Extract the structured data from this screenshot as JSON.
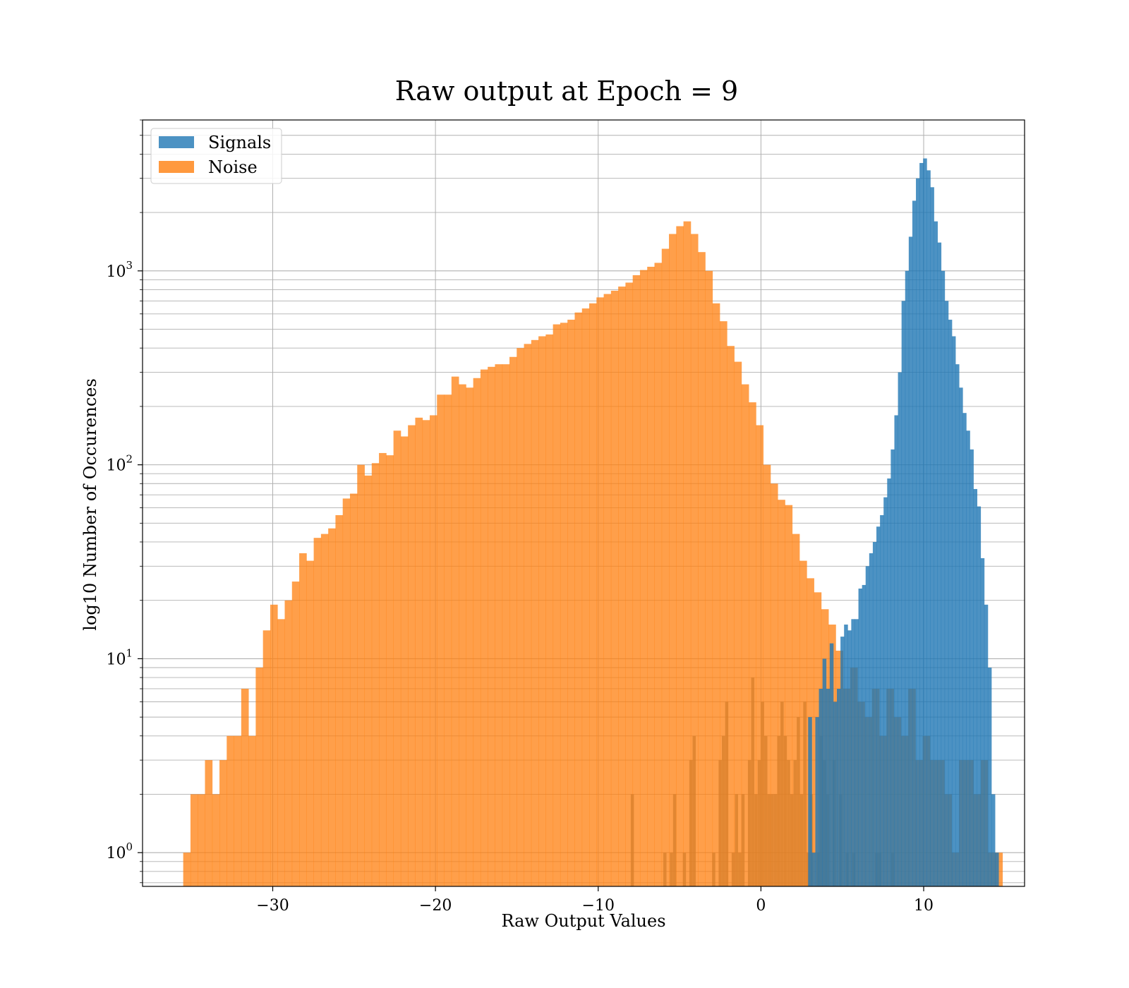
{
  "chart_data": {
    "type": "bar",
    "title": "Raw output at Epoch = 9",
    "xlabel": "Raw Output Values",
    "ylabel": "log10 Number of Occurences",
    "xlim": [
      -38,
      16.2
    ],
    "ylim": [
      0.67,
      6000
    ],
    "yscale": "log",
    "grid": true,
    "legend_position": "top-left",
    "x_ticks": [
      -30,
      -20,
      -10,
      0,
      10
    ],
    "x_tick_labels": [
      "−30",
      "−20",
      "−10",
      "0",
      "10"
    ],
    "y_ticks": [
      1,
      10,
      100,
      1000
    ],
    "y_tick_labels": [
      {
        "base": "10",
        "exp": "0"
      },
      {
        "base": "10",
        "exp": "1"
      },
      {
        "base": "10",
        "exp": "2"
      },
      {
        "base": "10",
        "exp": "3"
      }
    ],
    "series": [
      {
        "name": "Noise",
        "color": "#ff7f0e",
        "opacity": 0.75,
        "bin_start": -35.5,
        "bin_width": 0.4455,
        "values": [
          1,
          2,
          2,
          3,
          2,
          3,
          4,
          4,
          7,
          4,
          9,
          14,
          19,
          16,
          20,
          25,
          35,
          32,
          42,
          44,
          47,
          55,
          67,
          71,
          100,
          88,
          102,
          115,
          112,
          150,
          140,
          160,
          175,
          170,
          180,
          230,
          230,
          285,
          260,
          250,
          280,
          310,
          320,
          330,
          330,
          360,
          400,
          420,
          440,
          460,
          470,
          530,
          540,
          560,
          610,
          640,
          680,
          730,
          760,
          790,
          830,
          870,
          950,
          1010,
          1050,
          1100,
          1300,
          1550,
          1700,
          1800,
          1550,
          1250,
          1000,
          680,
          550,
          410,
          340,
          260,
          210,
          160,
          100,
          80,
          66,
          62,
          44,
          32,
          26,
          22,
          18,
          15,
          11,
          7,
          9,
          6,
          5,
          7,
          4,
          7,
          5,
          4,
          7,
          3,
          4,
          3,
          3,
          2,
          1,
          3,
          3,
          2,
          3,
          1,
          1
        ]
      },
      {
        "name": "",
        "color": "#d87f2b",
        "opacity": 0.75,
        "bars": [
          [
            -8.0,
            2
          ],
          [
            -6.0,
            1
          ],
          [
            -5.6,
            1
          ],
          [
            -5.4,
            2
          ],
          [
            -4.8,
            1
          ],
          [
            -4.4,
            3
          ],
          [
            -4.2,
            4
          ],
          [
            -3.0,
            1
          ],
          [
            -2.6,
            3
          ],
          [
            -2.4,
            4
          ],
          [
            -2.2,
            6
          ],
          [
            -1.8,
            1
          ],
          [
            -1.6,
            2
          ],
          [
            -1.4,
            1
          ],
          [
            -1.2,
            2
          ],
          [
            -0.8,
            3
          ],
          [
            -0.6,
            8
          ],
          [
            -0.4,
            2
          ],
          [
            -0.2,
            3
          ],
          [
            0.0,
            6
          ],
          [
            0.2,
            4
          ],
          [
            0.4,
            2
          ],
          [
            0.6,
            2
          ],
          [
            0.8,
            2
          ],
          [
            1.0,
            4
          ],
          [
            1.2,
            6
          ],
          [
            1.4,
            4
          ],
          [
            1.6,
            3
          ],
          [
            1.8,
            2
          ],
          [
            2.0,
            3
          ],
          [
            2.2,
            5
          ],
          [
            2.4,
            2
          ],
          [
            2.6,
            6
          ],
          [
            2.8,
            1
          ],
          [
            3.0,
            2
          ],
          [
            3.4,
            1
          ],
          [
            3.6,
            4
          ],
          [
            3.8,
            3
          ],
          [
            4.0,
            2
          ],
          [
            4.4,
            3
          ],
          [
            4.8,
            2
          ],
          [
            5.2,
            1
          ],
          [
            5.6,
            1
          ],
          [
            7.0,
            1
          ],
          [
            7.2,
            1
          ],
          [
            8.0,
            1
          ]
        ]
      },
      {
        "name": "Signals",
        "color": "#1f77b4",
        "opacity": 0.8,
        "bin_start": 2.9,
        "bin_width": 0.2208,
        "values": [
          5,
          1,
          5,
          7,
          10,
          7,
          12,
          6,
          7,
          13,
          15,
          14,
          16,
          16,
          23,
          24,
          30,
          35,
          40,
          48,
          55,
          68,
          85,
          120,
          180,
          300,
          700,
          1000,
          1500,
          2300,
          3000,
          3600,
          3800,
          3300,
          2700,
          1800,
          1400,
          1000,
          700,
          560,
          460,
          330,
          250,
          185,
          150,
          120,
          75,
          61,
          33,
          19,
          9,
          2,
          1
        ]
      }
    ],
    "legend": [
      {
        "label": "Signals",
        "color": "#1f77b4"
      },
      {
        "label": "Noise",
        "color": "#ff7f0e"
      }
    ]
  }
}
